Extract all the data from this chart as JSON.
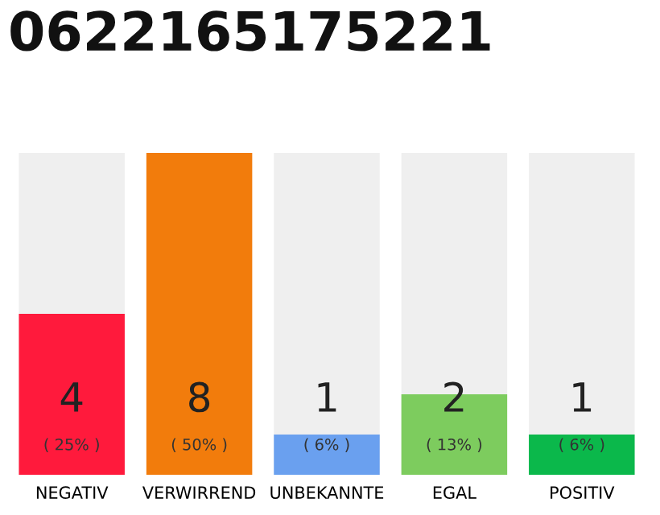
{
  "chart_data": {
    "type": "bar",
    "title": "0622165175221",
    "categories": [
      "NEGATIV",
      "VERWIRREND",
      "UNBEKANNTE",
      "EGAL",
      "POSITIV"
    ],
    "values": [
      4,
      8,
      1,
      2,
      1
    ],
    "colors": [
      "#ff1a3c",
      "#f27c0c",
      "#6aa0ef",
      "#7dcc5e",
      "#0bb84b"
    ],
    "data_labels": true,
    "annotations": [
      "( 25% )",
      "( 50% )",
      "( 6% )",
      "( 13% )",
      "( 6% )"
    ],
    "grid": false,
    "legend": false
  }
}
